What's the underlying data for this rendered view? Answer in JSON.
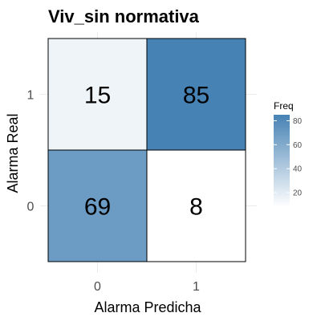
{
  "chart_data": {
    "type": "heatmap",
    "title": "Viv_sin normativa",
    "xlabel": "Alarma Predicha",
    "ylabel": "Alarma Real",
    "x_categories": [
      "0",
      "1"
    ],
    "y_categories": [
      "0",
      "1"
    ],
    "cells": [
      {
        "x": "0",
        "y": "1",
        "value": 15
      },
      {
        "x": "1",
        "y": "1",
        "value": 85
      },
      {
        "x": "0",
        "y": "0",
        "value": 69
      },
      {
        "x": "1",
        "y": "0",
        "value": 8
      }
    ],
    "legend": {
      "title": "Freq",
      "ticks": [
        20,
        40,
        60,
        80
      ],
      "range": [
        8,
        85
      ],
      "placement": "right"
    },
    "colors": {
      "low": "#ffffff",
      "high": "#4682b4",
      "cell_border": "#000000"
    },
    "grid": true
  }
}
